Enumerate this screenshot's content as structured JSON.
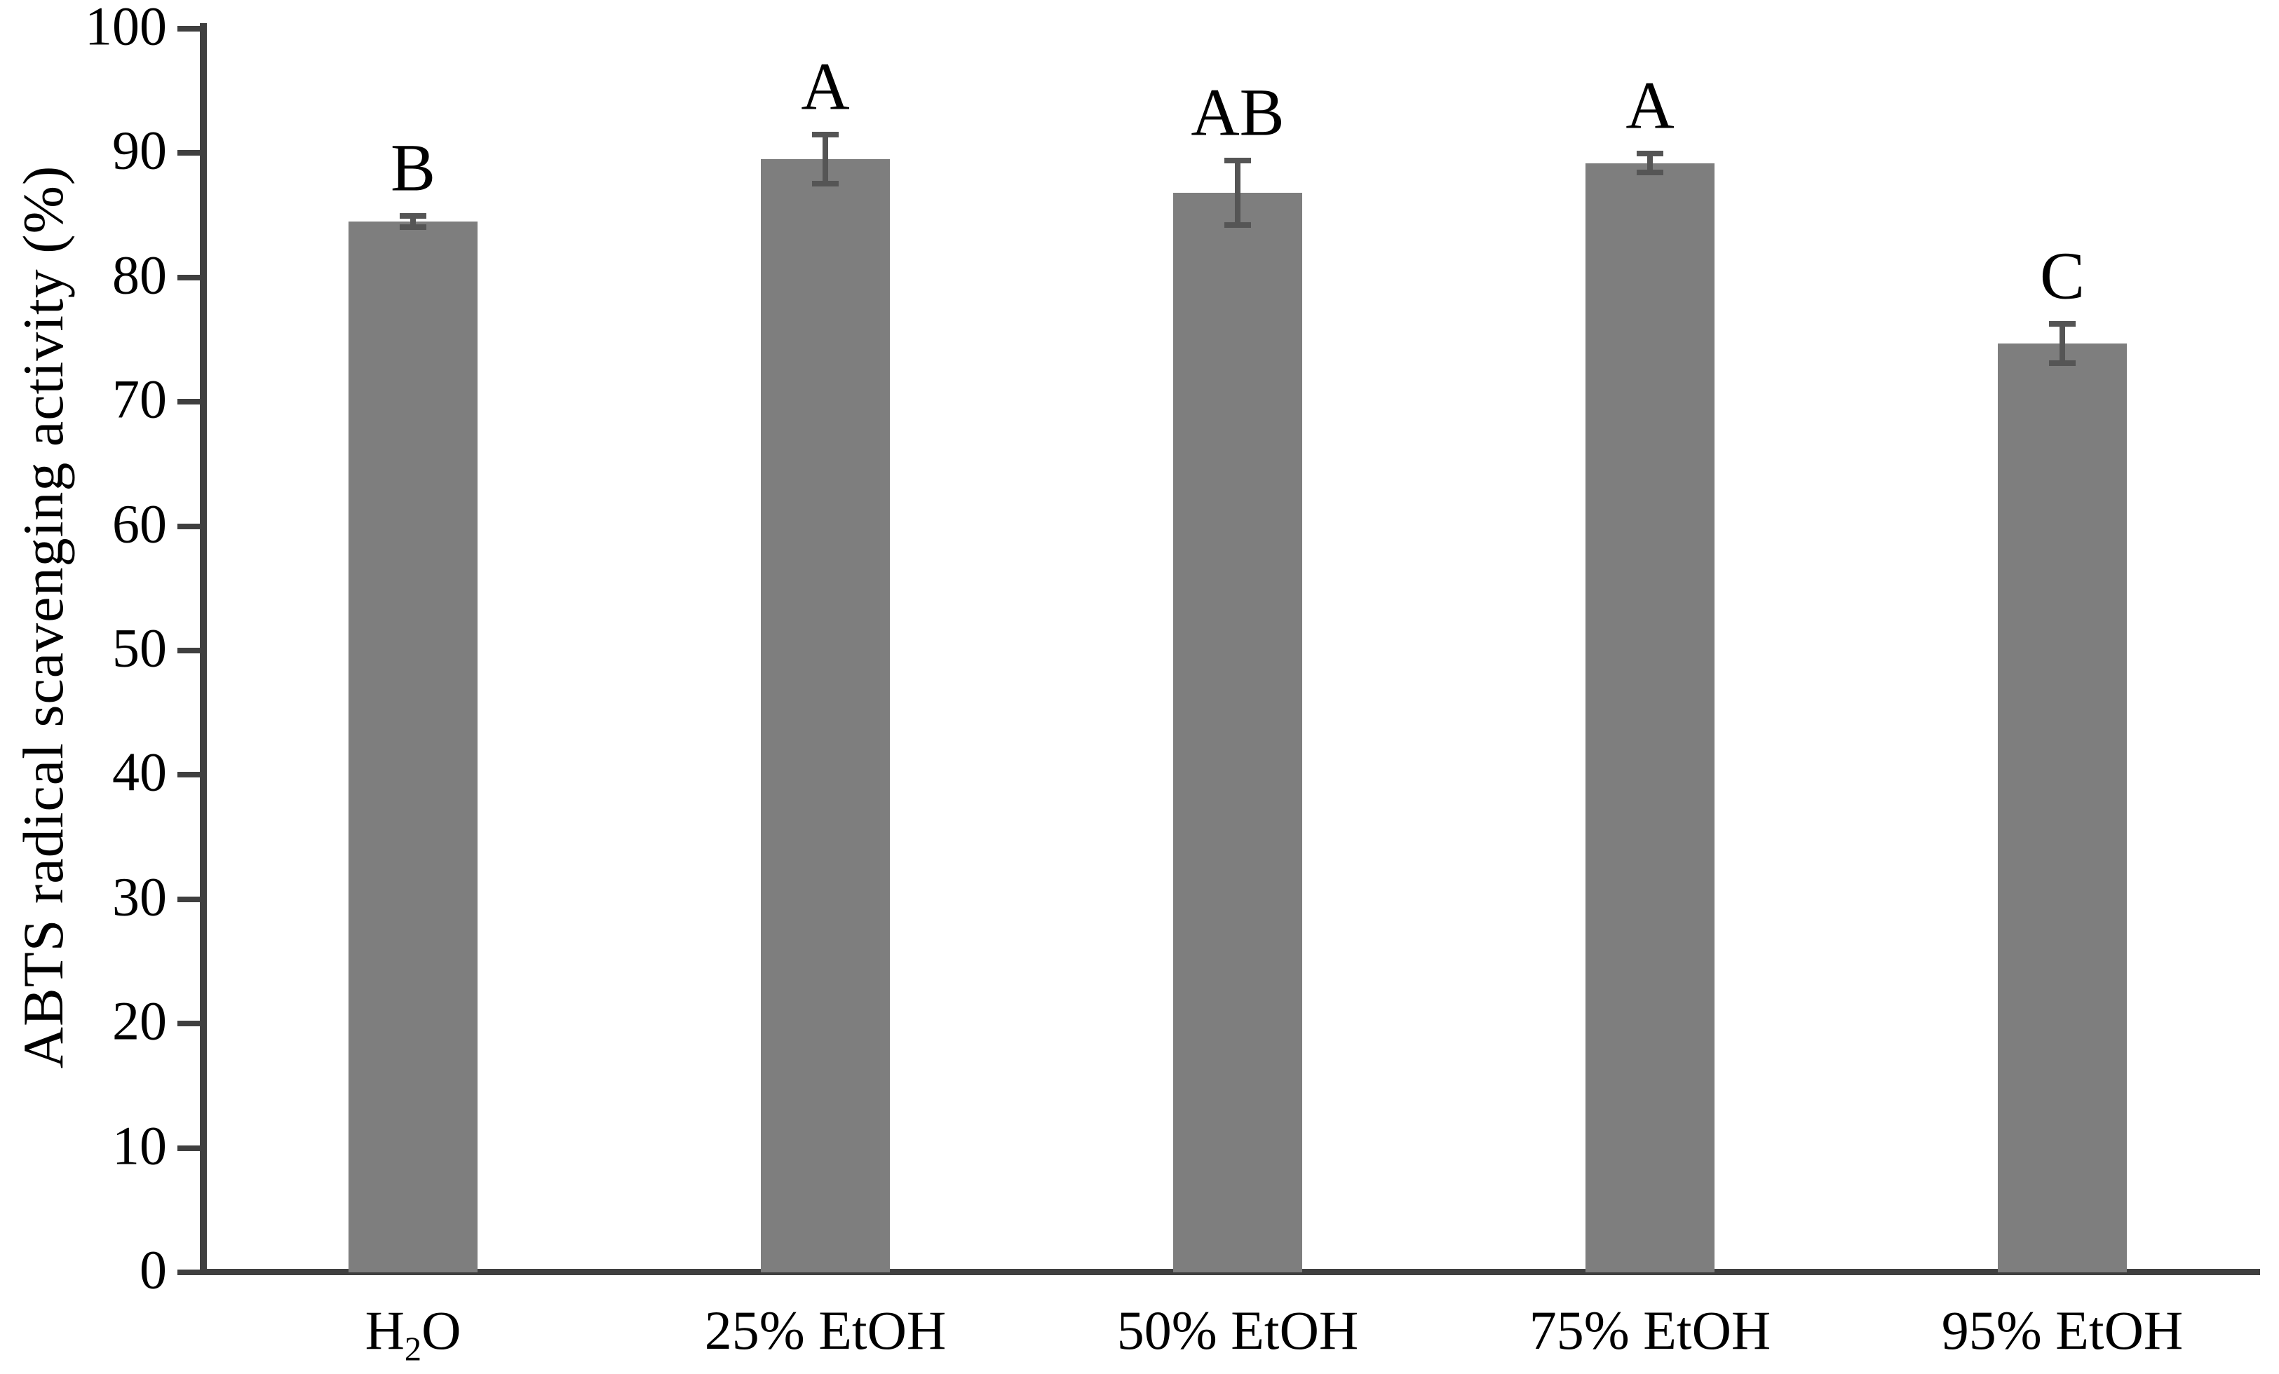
{
  "chart_data": {
    "type": "bar",
    "title": "",
    "categories": [
      "H₂O",
      "25% EtOH",
      "50% EtOH",
      "75% EtOH",
      "95% EtOH"
    ],
    "values": [
      84.5,
      89.5,
      86.8,
      89.2,
      74.7
    ],
    "errors": [
      0.7,
      2.2,
      2.8,
      1.0,
      1.8
    ],
    "sig_letters": [
      "B",
      "A",
      "AB",
      "A",
      "C"
    ],
    "xlabel": "",
    "ylabel": "ABTS radical scavenging activity (%)",
    "ylim": [
      0,
      100
    ],
    "yticks": [
      0,
      10,
      20,
      30,
      40,
      50,
      60,
      70,
      80,
      90,
      100
    ],
    "grid": "off",
    "legend": "none",
    "colors": {
      "bar": "#7E7E7E",
      "error_bar": "#555555",
      "axis": "#3F3F3F",
      "text": "#000000",
      "background": "#FFFFFF"
    }
  }
}
